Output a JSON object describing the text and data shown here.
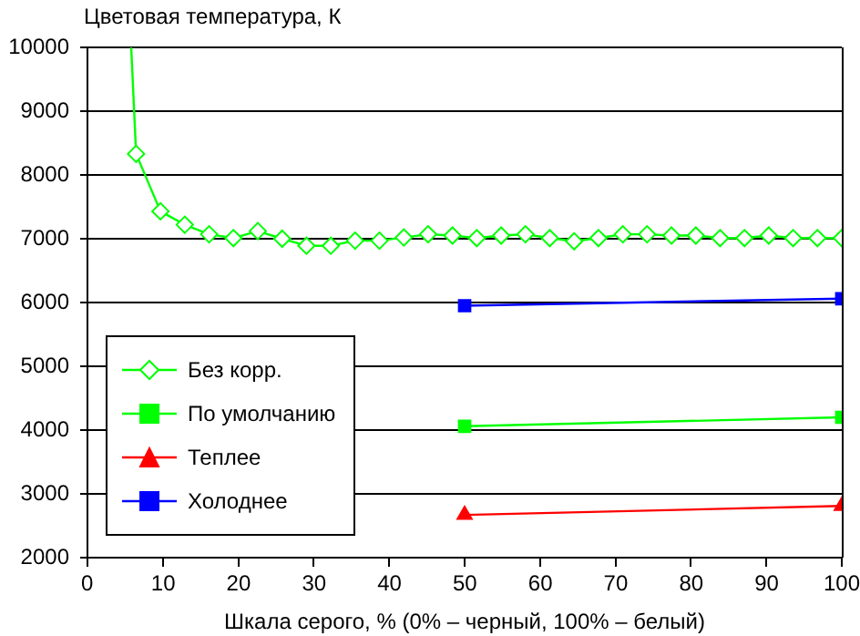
{
  "chart_data": {
    "type": "line",
    "ylabel": "Цветовая температура, К",
    "xlabel": "Шкала серого, % (0% – черный, 100% – белый)",
    "xlim": [
      0,
      100
    ],
    "xticks": [
      0,
      10,
      20,
      30,
      40,
      50,
      60,
      70,
      80,
      90,
      100
    ],
    "ylim": [
      2000,
      10000
    ],
    "yticks": [
      2000,
      3000,
      4000,
      5000,
      6000,
      7000,
      8000,
      9000,
      10000
    ],
    "grid": "y",
    "legend": "left",
    "line_style": "solid",
    "series": [
      {
        "name": "Без корр.",
        "color": "#00ff00",
        "marker": "diamond",
        "x": [
          5.8,
          6.45,
          9.68,
          12.9,
          16.13,
          19.35,
          22.58,
          25.81,
          29.03,
          32.26,
          35.48,
          38.71,
          41.94,
          45.16,
          48.39,
          51.61,
          54.84,
          58.06,
          61.29,
          64.52,
          67.74,
          70.97,
          74.19,
          77.42,
          80.65,
          83.87,
          87.1,
          90.32,
          93.55,
          96.77,
          100
        ],
        "values": [
          10000,
          8330,
          7430,
          7220,
          7070,
          7010,
          7120,
          7000,
          6890,
          6890,
          6970,
          6970,
          7020,
          7070,
          7050,
          7010,
          7050,
          7070,
          7010,
          6960,
          7010,
          7070,
          7070,
          7050,
          7050,
          7010,
          7010,
          7050,
          7010,
          7010,
          7010
        ]
      },
      {
        "name": "По умолчанию",
        "color": "#00ff00",
        "marker": "square",
        "x": [
          50,
          100
        ],
        "values": [
          4060,
          4200
        ]
      },
      {
        "name": "Теплее",
        "color": "#ff0000",
        "marker": "triangle",
        "x": [
          50,
          100
        ],
        "values": [
          2670,
          2810
        ]
      },
      {
        "name": "Холоднее",
        "color": "#0000ff",
        "marker": "square",
        "x": [
          50,
          100
        ],
        "values": [
          5950,
          6060
        ]
      }
    ]
  }
}
